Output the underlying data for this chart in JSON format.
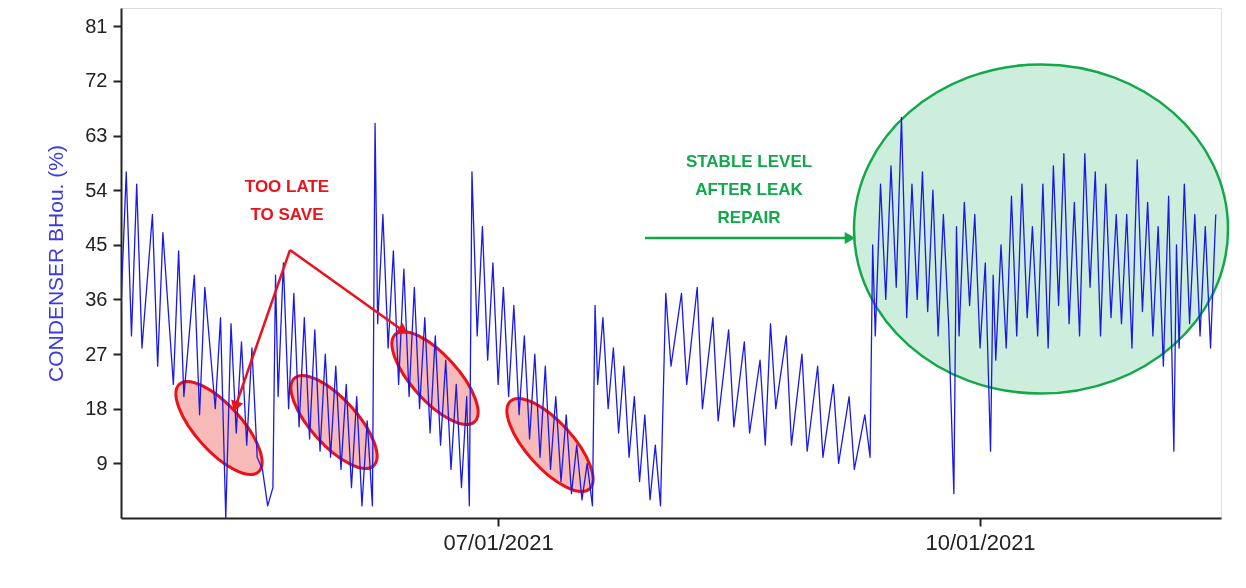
{
  "chart_data": {
    "type": "line",
    "ylabel": "CONDENSER BHou. (%)",
    "xlim": [
      "2021-04-20",
      "2021-11-16"
    ],
    "xticks": [
      {
        "value": "2021-07-01",
        "label": "07/01/2021"
      },
      {
        "value": "2021-10-01",
        "label": "10/01/2021"
      }
    ],
    "ylim": [
      0,
      84
    ],
    "yticks": [
      9,
      18,
      27,
      36,
      45,
      54,
      63,
      72,
      81
    ],
    "grid": false,
    "marker": "none",
    "line_style": "solid",
    "annotations": [
      "TOO LATE TO SAVE",
      "STABLE LEVEL AFTER LEAK REPAIR"
    ],
    "series": [
      {
        "color": "#1a1ae6",
        "x": [
          "2021-04-20",
          "2021-04-21",
          "2021-04-22",
          "2021-04-23",
          "2021-04-24",
          "2021-04-26",
          "2021-04-27",
          "2021-04-28",
          "2021-04-30",
          "2021-05-01",
          "2021-05-02",
          "2021-05-04",
          "2021-05-05",
          "2021-05-06",
          "2021-05-08",
          "2021-05-09",
          "2021-05-10",
          "2021-05-11",
          "2021-05-12",
          "2021-05-13",
          "2021-05-14",
          "2021-05-15",
          "2021-05-16",
          "2021-05-17",
          "2021-05-18",
          "2021-05-19",
          "2021-05-19T12:00",
          "2021-05-20",
          "2021-05-21",
          "2021-05-22",
          "2021-05-23",
          "2021-05-24",
          "2021-05-25",
          "2021-05-26",
          "2021-05-27",
          "2021-05-28",
          "2021-05-29",
          "2021-05-30",
          "2021-05-31",
          "2021-06-01",
          "2021-06-02",
          "2021-06-03",
          "2021-06-04",
          "2021-06-05",
          "2021-06-06",
          "2021-06-07",
          "2021-06-07T12:00",
          "2021-06-08",
          "2021-06-09",
          "2021-06-10",
          "2021-06-11",
          "2021-06-12",
          "2021-06-13",
          "2021-06-14",
          "2021-06-15",
          "2021-06-16",
          "2021-06-17",
          "2021-06-18",
          "2021-06-19",
          "2021-06-20",
          "2021-06-21",
          "2021-06-22",
          "2021-06-23",
          "2021-06-24",
          "2021-06-25",
          "2021-06-25T12:00",
          "2021-06-26",
          "2021-06-27",
          "2021-06-28",
          "2021-06-29",
          "2021-06-30",
          "2021-07-01",
          "2021-07-02",
          "2021-07-03",
          "2021-07-04",
          "2021-07-05",
          "2021-07-06",
          "2021-07-07",
          "2021-07-08",
          "2021-07-09",
          "2021-07-10",
          "2021-07-11",
          "2021-07-12",
          "2021-07-13",
          "2021-07-14",
          "2021-07-15",
          "2021-07-16",
          "2021-07-17",
          "2021-07-18",
          "2021-07-19",
          "2021-07-19T12:00",
          "2021-07-20",
          "2021-07-21",
          "2021-07-22",
          "2021-07-23",
          "2021-07-24",
          "2021-07-25",
          "2021-07-26",
          "2021-07-27",
          "2021-07-28",
          "2021-07-29",
          "2021-07-30",
          "2021-07-31",
          "2021-08-01",
          "2021-08-02",
          "2021-08-03",
          "2021-08-05",
          "2021-08-06",
          "2021-08-08",
          "2021-08-09",
          "2021-08-11",
          "2021-08-12",
          "2021-08-14",
          "2021-08-15",
          "2021-08-17",
          "2021-08-18",
          "2021-08-20",
          "2021-08-21",
          "2021-08-22",
          "2021-08-23",
          "2021-08-25",
          "2021-08-26",
          "2021-08-28",
          "2021-08-29",
          "2021-08-31",
          "2021-09-01",
          "2021-09-03",
          "2021-09-04",
          "2021-09-06",
          "2021-09-07",
          "2021-09-09",
          "2021-09-10",
          "2021-09-10T12:00",
          "2021-09-11",
          "2021-09-12",
          "2021-09-13",
          "2021-09-14",
          "2021-09-15",
          "2021-09-16",
          "2021-09-17",
          "2021-09-18",
          "2021-09-19",
          "2021-09-20",
          "2021-09-21",
          "2021-09-22",
          "2021-09-23",
          "2021-09-24",
          "2021-09-25",
          "2021-09-26",
          "2021-09-26T12:00",
          "2021-09-27",
          "2021-09-28",
          "2021-09-29",
          "2021-09-30",
          "2021-10-01",
          "2021-10-02",
          "2021-10-03",
          "2021-10-03T12:00",
          "2021-10-04",
          "2021-10-05",
          "2021-10-06",
          "2021-10-07",
          "2021-10-08",
          "2021-10-09",
          "2021-10-10",
          "2021-10-11",
          "2021-10-12",
          "2021-10-13",
          "2021-10-14",
          "2021-10-15",
          "2021-10-16",
          "2021-10-17",
          "2021-10-18",
          "2021-10-19",
          "2021-10-20",
          "2021-10-21",
          "2021-10-22",
          "2021-10-23",
          "2021-10-24",
          "2021-10-25",
          "2021-10-26",
          "2021-10-27",
          "2021-10-28",
          "2021-10-29",
          "2021-10-30",
          "2021-10-31",
          "2021-11-01",
          "2021-11-02",
          "2021-11-03",
          "2021-11-04",
          "2021-11-05",
          "2021-11-06",
          "2021-11-07",
          "2021-11-07T12:00",
          "2021-11-08",
          "2021-11-09",
          "2021-11-10",
          "2021-11-11",
          "2021-11-12",
          "2021-11-13",
          "2021-11-14",
          "2021-11-15"
        ],
        "values": [
          35,
          57,
          30,
          55,
          28,
          50,
          25,
          47,
          22,
          44,
          20,
          40,
          17,
          38,
          18,
          33,
          0,
          32,
          14,
          29,
          12,
          28,
          10,
          8,
          2,
          5,
          40,
          20,
          42,
          18,
          37,
          15,
          33,
          13,
          31,
          11,
          27,
          10,
          25,
          8,
          22,
          5,
          20,
          2,
          16,
          2,
          65,
          32,
          50,
          28,
          44,
          22,
          41,
          20,
          38,
          18,
          33,
          14,
          30,
          12,
          26,
          8,
          22,
          5,
          20,
          2,
          57,
          30,
          48,
          26,
          42,
          22,
          38,
          20,
          35,
          17,
          30,
          13,
          27,
          10,
          25,
          8,
          20,
          6,
          17,
          4,
          12,
          3,
          9,
          2,
          35,
          22,
          33,
          18,
          28,
          14,
          25,
          10,
          20,
          6,
          17,
          3,
          12,
          2,
          37,
          25,
          37,
          22,
          38,
          18,
          33,
          16,
          31,
          15,
          29,
          14,
          26,
          12,
          32,
          18,
          30,
          12,
          27,
          11,
          25,
          10,
          22,
          9,
          20,
          8,
          17,
          10,
          45,
          30,
          55,
          36,
          58,
          38,
          66,
          33,
          55,
          36,
          57,
          34,
          54,
          30,
          50,
          32,
          4,
          48,
          30,
          52,
          35,
          50,
          28,
          42,
          11,
          40,
          26,
          45,
          28,
          53,
          30,
          55,
          33,
          48,
          30,
          55,
          28,
          58,
          35,
          60,
          32,
          52,
          30,
          60,
          38,
          57,
          30,
          55,
          33,
          50,
          32,
          50,
          28,
          59,
          34,
          52,
          30,
          48,
          25,
          53,
          11,
          45,
          28,
          55,
          32,
          50,
          30,
          48,
          28,
          50
        ]
      }
    ]
  }
}
